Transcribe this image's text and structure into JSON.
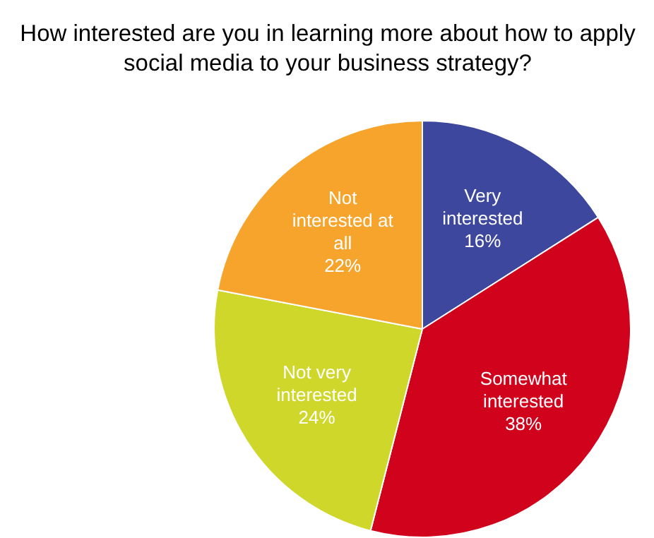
{
  "chart_data": {
    "type": "pie",
    "title": "How interested are you in learning more about how to apply social media to your business strategy?",
    "categories": [
      "Very interested",
      "Somewhat interested",
      "Not very interested",
      "Not interested at all"
    ],
    "values": [
      16,
      38,
      24,
      22
    ],
    "colors": [
      "#3d479d",
      "#d0021c",
      "#cfd72b",
      "#f6a42c"
    ],
    "value_labels": [
      "16%",
      "38%",
      "24%",
      "22%"
    ],
    "legend": false
  }
}
